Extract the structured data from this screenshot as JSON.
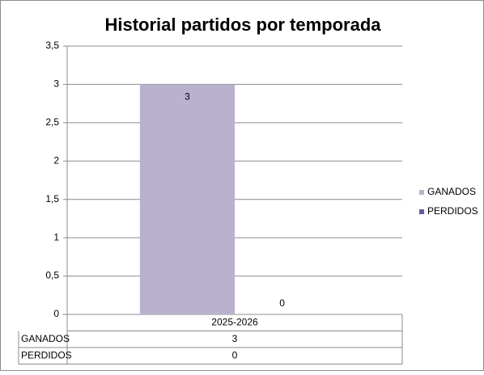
{
  "chart_data": {
    "type": "bar",
    "title": "Historial partidos por temporada",
    "categories": [
      "2025-2026"
    ],
    "series": [
      {
        "name": "GANADOS",
        "color": "#b9b1cd",
        "values": [
          3
        ]
      },
      {
        "name": "PERDIDOS",
        "color": "#6b5a9e",
        "values": [
          0
        ]
      }
    ],
    "ylim": [
      0,
      3.5
    ],
    "yticks": [
      0,
      {
        "value": 0.5,
        "label": "0,5"
      },
      1,
      {
        "value": 1.5,
        "label": "1,5"
      },
      2,
      {
        "value": 2.5,
        "label": "2,5"
      },
      3,
      {
        "value": 3.5,
        "label": "3,5"
      }
    ],
    "grid": true,
    "legend": "right",
    "data_table": true
  }
}
